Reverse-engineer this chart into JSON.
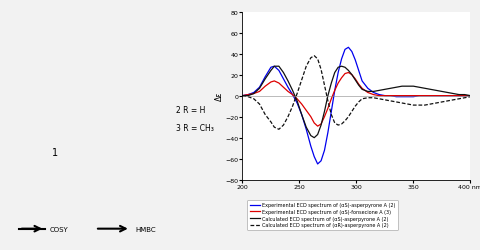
{
  "xlim": [
    200,
    400
  ],
  "ylim": [
    -80,
    80
  ],
  "xticks": [
    200,
    250,
    300,
    350,
    400
  ],
  "yticks": [
    -80,
    -60,
    -40,
    -20,
    0,
    20,
    40,
    60,
    80
  ],
  "legend_entries": [
    {
      "label": "Experimental ECD spectrum of (αS)-asperpyrone A (2)",
      "color": "#0000ee",
      "linestyle": "solid"
    },
    {
      "label": "Experimental ECD spectrum of (αS)-fonsecione A (3)",
      "color": "#dd0000",
      "linestyle": "solid"
    },
    {
      "label": "Calculated ECD spectrum of (αS)-asperpyrone A (2)",
      "color": "#111111",
      "linestyle": "solid"
    },
    {
      "label": "Calculated ECD spectrum of (αR)-asperpyrone A (2)",
      "color": "#111111",
      "linestyle": "dashed"
    }
  ],
  "ylabel": "Δε",
  "curve_blue": {
    "x": [
      200,
      205,
      210,
      215,
      220,
      225,
      228,
      232,
      236,
      240,
      244,
      248,
      252,
      256,
      260,
      263,
      266,
      269,
      272,
      275,
      278,
      281,
      284,
      287,
      290,
      293,
      296,
      299,
      302,
      305,
      310,
      315,
      320,
      325,
      330,
      335,
      340,
      345,
      350,
      355,
      360,
      365,
      370,
      375,
      380,
      385,
      390,
      395,
      400
    ],
    "y": [
      0,
      1,
      3,
      8,
      18,
      27,
      28,
      24,
      16,
      8,
      1,
      -7,
      -18,
      -32,
      -48,
      -58,
      -65,
      -62,
      -52,
      -35,
      -15,
      5,
      22,
      35,
      44,
      46,
      42,
      34,
      24,
      14,
      7,
      3,
      1,
      0,
      0,
      -1,
      -1,
      -1,
      -1,
      0,
      0,
      0,
      0,
      0,
      0,
      0,
      0,
      0,
      0
    ]
  },
  "curve_red": {
    "x": [
      200,
      205,
      210,
      215,
      220,
      225,
      228,
      232,
      236,
      240,
      244,
      248,
      252,
      256,
      260,
      263,
      266,
      269,
      272,
      275,
      278,
      281,
      284,
      287,
      290,
      293,
      296,
      299,
      302,
      305,
      310,
      315,
      320,
      325,
      330,
      335,
      340,
      345,
      350,
      355,
      360,
      365,
      370,
      375,
      380,
      385,
      390,
      395,
      400
    ],
    "y": [
      0,
      1,
      2,
      4,
      9,
      13,
      14,
      12,
      8,
      4,
      1,
      -3,
      -8,
      -14,
      -20,
      -26,
      -29,
      -27,
      -20,
      -12,
      -3,
      5,
      12,
      17,
      21,
      22,
      20,
      16,
      11,
      7,
      3,
      1,
      0,
      0,
      0,
      0,
      0,
      0,
      0,
      0,
      0,
      0,
      0,
      0,
      0,
      0,
      0,
      0,
      0
    ]
  },
  "curve_black_solid": {
    "x": [
      200,
      205,
      210,
      215,
      220,
      225,
      228,
      232,
      236,
      240,
      244,
      248,
      252,
      256,
      260,
      263,
      266,
      269,
      272,
      275,
      278,
      281,
      284,
      287,
      290,
      293,
      296,
      299,
      302,
      305,
      310,
      315,
      320,
      325,
      330,
      335,
      340,
      345,
      350,
      355,
      360,
      365,
      370,
      375,
      380,
      385,
      390,
      395,
      400
    ],
    "y": [
      0,
      0,
      2,
      7,
      16,
      24,
      28,
      28,
      22,
      14,
      5,
      -5,
      -18,
      -30,
      -38,
      -40,
      -37,
      -28,
      -15,
      0,
      12,
      22,
      27,
      28,
      27,
      24,
      20,
      15,
      10,
      6,
      4,
      4,
      5,
      6,
      7,
      8,
      9,
      9,
      9,
      8,
      7,
      6,
      5,
      4,
      3,
      2,
      1,
      1,
      0
    ]
  },
  "curve_black_dashed": {
    "x": [
      200,
      205,
      210,
      215,
      220,
      225,
      228,
      232,
      236,
      240,
      244,
      248,
      252,
      256,
      260,
      263,
      266,
      269,
      272,
      275,
      278,
      281,
      284,
      287,
      290,
      293,
      296,
      299,
      302,
      305,
      310,
      315,
      320,
      325,
      330,
      335,
      340,
      345,
      350,
      355,
      360,
      365,
      370,
      375,
      380,
      385,
      390,
      395,
      400
    ],
    "y": [
      0,
      -1,
      -3,
      -8,
      -18,
      -25,
      -30,
      -32,
      -28,
      -20,
      -10,
      2,
      15,
      28,
      36,
      38,
      35,
      25,
      10,
      -5,
      -18,
      -26,
      -28,
      -27,
      -24,
      -20,
      -15,
      -10,
      -6,
      -3,
      -2,
      -2,
      -3,
      -4,
      -5,
      -6,
      -7,
      -8,
      -9,
      -9,
      -9,
      -8,
      -7,
      -6,
      -5,
      -4,
      -3,
      -2,
      -1
    ]
  },
  "text_label1": "1",
  "text_2RH": "2 R = H",
  "text_3RCH3": "3 R = CH₃",
  "text_cosy": "COSY",
  "text_hmbc": "HMBC",
  "fig_bg": "#f2f2f2"
}
